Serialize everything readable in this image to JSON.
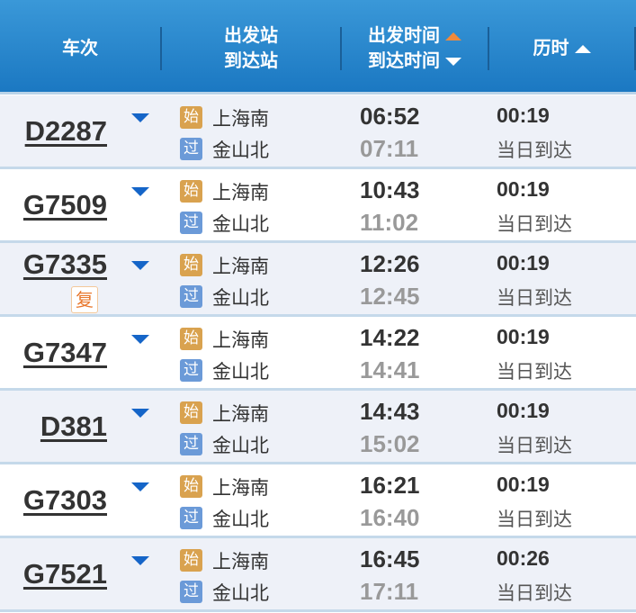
{
  "header": {
    "train": "车次",
    "from_station": "出发站",
    "to_station": "到达站",
    "depart_time": "出发时间",
    "arrive_time": "到达时间",
    "duration": "历时"
  },
  "colors": {
    "header": "#1b78c2",
    "sort_active": "#f08a3c",
    "start_badge": "#d9a24f",
    "pass_badge": "#6b9ad8",
    "expand_arrow": "#1565c8"
  },
  "badges": {
    "start": "始",
    "pass": "过",
    "resumed": "复"
  },
  "rows": [
    {
      "train": "D2287",
      "from": "上海南",
      "to": "金山北",
      "depart": "06:52",
      "arrive": "07:11",
      "duration": "00:19",
      "arrival_day": "当日到达"
    },
    {
      "train": "G7509",
      "from": "上海南",
      "to": "金山北",
      "depart": "10:43",
      "arrive": "11:02",
      "duration": "00:19",
      "arrival_day": "当日到达"
    },
    {
      "train": "G7335",
      "from": "上海南",
      "to": "金山北",
      "depart": "12:26",
      "arrive": "12:45",
      "duration": "00:19",
      "arrival_day": "当日到达",
      "resumed": true
    },
    {
      "train": "G7347",
      "from": "上海南",
      "to": "金山北",
      "depart": "14:22",
      "arrive": "14:41",
      "duration": "00:19",
      "arrival_day": "当日到达"
    },
    {
      "train": "D381",
      "from": "上海南",
      "to": "金山北",
      "depart": "14:43",
      "arrive": "15:02",
      "duration": "00:19",
      "arrival_day": "当日到达"
    },
    {
      "train": "G7303",
      "from": "上海南",
      "to": "金山北",
      "depart": "16:21",
      "arrive": "16:40",
      "duration": "00:19",
      "arrival_day": "当日到达"
    },
    {
      "train": "G7521",
      "from": "上海南",
      "to": "金山北",
      "depart": "16:45",
      "arrive": "17:11",
      "duration": "00:26",
      "arrival_day": "当日到达"
    }
  ]
}
